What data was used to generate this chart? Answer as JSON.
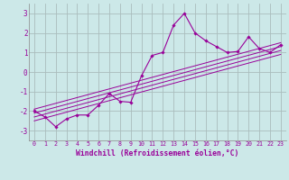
{
  "xlabel": "Windchill (Refroidissement éolien,°C)",
  "background_color": "#cce8e8",
  "grid_color": "#aabcbc",
  "line_color": "#990099",
  "xlim": [
    -0.5,
    23.5
  ],
  "ylim": [
    -3.5,
    3.5
  ],
  "yticks": [
    -3,
    -2,
    -1,
    0,
    1,
    2,
    3
  ],
  "xticks": [
    0,
    1,
    2,
    3,
    4,
    5,
    6,
    7,
    8,
    9,
    10,
    11,
    12,
    13,
    14,
    15,
    16,
    17,
    18,
    19,
    20,
    21,
    22,
    23
  ],
  "main_x": [
    0,
    1,
    2,
    3,
    4,
    5,
    6,
    7,
    8,
    9,
    10,
    11,
    12,
    13,
    14,
    15,
    16,
    17,
    18,
    19,
    20,
    21,
    22,
    23
  ],
  "main_y": [
    -2.0,
    -2.3,
    -2.8,
    -2.4,
    -2.2,
    -2.2,
    -1.7,
    -1.1,
    -1.5,
    -1.55,
    -0.2,
    0.85,
    1.0,
    2.4,
    3.0,
    2.0,
    1.6,
    1.3,
    1.0,
    1.05,
    1.8,
    1.2,
    1.0,
    1.4
  ],
  "trend_lines": [
    {
      "x": [
        0,
        23
      ],
      "y": [
        -1.9,
        1.5
      ]
    },
    {
      "x": [
        0,
        23
      ],
      "y": [
        -2.1,
        1.3
      ]
    },
    {
      "x": [
        0,
        23
      ],
      "y": [
        -2.3,
        1.1
      ]
    },
    {
      "x": [
        0,
        23
      ],
      "y": [
        -2.5,
        0.9
      ]
    }
  ]
}
